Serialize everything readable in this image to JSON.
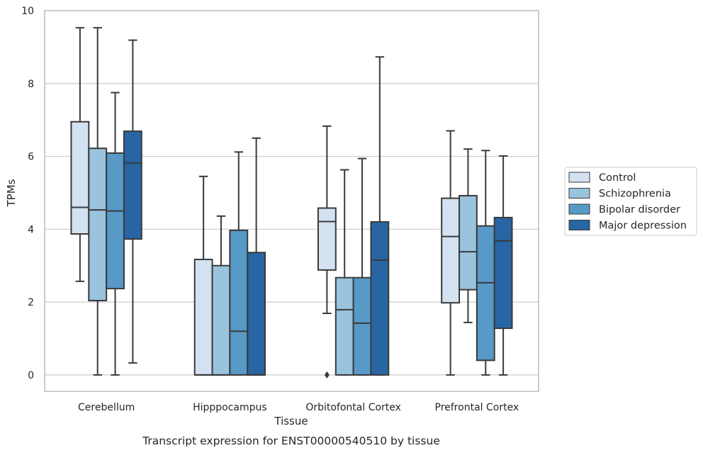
{
  "chart_data": {
    "type": "box",
    "xlabel": "Tissue",
    "ylabel": "TPMs",
    "caption": "Transcript expression for ENST00000540510 by tissue",
    "ylim": [
      -0.45,
      10
    ],
    "y_ticks": [
      "0",
      "2",
      "4",
      "6",
      "8",
      "10"
    ],
    "grid": "horizontal",
    "legend_position": "right",
    "categories": [
      "Cerebellum",
      "Hipppocampus",
      "Orbitofontal Cortex",
      "Prefrontal Cortex"
    ],
    "series": [
      {
        "name": "Control",
        "color": "#d2e2f1",
        "boxes": [
          {
            "whisker_low": 2.57,
            "q1": 3.87,
            "median": 4.6,
            "q3": 6.95,
            "whisker_high": 9.53
          },
          {
            "whisker_low": 0.0,
            "q1": 0.0,
            "median": 0.0,
            "q3": 3.17,
            "whisker_high": 5.45
          },
          {
            "whisker_low": 1.69,
            "q1": 2.88,
            "median": 4.21,
            "q3": 4.58,
            "whisker_high": 6.83,
            "outliers": [
              0.0
            ]
          },
          {
            "whisker_low": 0.0,
            "q1": 1.98,
            "median": 3.8,
            "q3": 4.85,
            "whisker_high": 6.7
          }
        ]
      },
      {
        "name": "Schizophrenia",
        "color": "#9ac3dd",
        "boxes": [
          {
            "whisker_low": 0.0,
            "q1": 2.04,
            "median": 4.53,
            "q3": 6.22,
            "whisker_high": 9.53
          },
          {
            "whisker_low": 0.0,
            "q1": 0.0,
            "median": 0.0,
            "q3": 3.0,
            "whisker_high": 4.36
          },
          {
            "whisker_low": 0.0,
            "q1": 0.0,
            "median": 1.79,
            "q3": 2.67,
            "whisker_high": 5.63
          },
          {
            "whisker_low": 1.44,
            "q1": 2.34,
            "median": 3.38,
            "q3": 4.92,
            "whisker_high": 6.2
          }
        ]
      },
      {
        "name": "Bipolar disorder",
        "color": "#5799c7",
        "boxes": [
          {
            "whisker_low": 0.0,
            "q1": 2.37,
            "median": 4.5,
            "q3": 6.09,
            "whisker_high": 7.75
          },
          {
            "whisker_low": 0.0,
            "q1": 0.0,
            "median": 1.2,
            "q3": 3.97,
            "whisker_high": 6.12
          },
          {
            "whisker_low": 0.0,
            "q1": 0.0,
            "median": 1.42,
            "q3": 2.67,
            "whisker_high": 5.94
          },
          {
            "whisker_low": 0.0,
            "q1": 0.4,
            "median": 2.53,
            "q3": 4.09,
            "whisker_high": 6.16
          }
        ]
      },
      {
        "name": "Major depression",
        "color": "#2865a3",
        "boxes": [
          {
            "whisker_low": 0.33,
            "q1": 3.73,
            "median": 5.82,
            "q3": 6.69,
            "whisker_high": 9.19
          },
          {
            "whisker_low": 0.0,
            "q1": 0.0,
            "median": 0.0,
            "q3": 3.36,
            "whisker_high": 6.5
          },
          {
            "whisker_low": 0.0,
            "q1": 0.0,
            "median": 3.15,
            "q3": 4.2,
            "whisker_high": 8.73
          },
          {
            "whisker_low": 0.0,
            "q1": 1.28,
            "median": 3.68,
            "q3": 4.32,
            "whisker_high": 6.01
          }
        ]
      }
    ]
  }
}
